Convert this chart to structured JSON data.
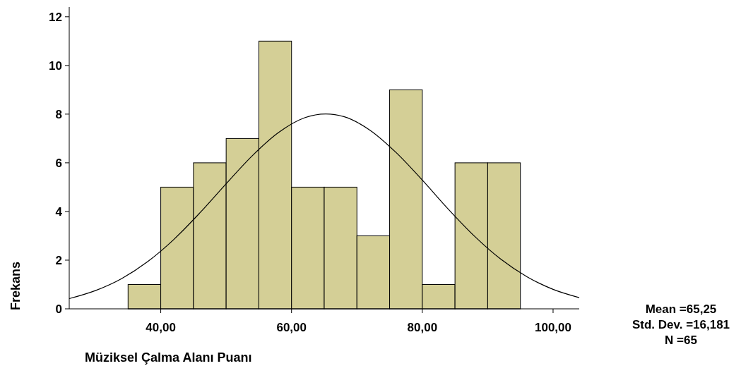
{
  "chart_data": {
    "type": "histogram",
    "xlabel": "Müziksel Çalma Alanı Puanı",
    "ylabel": "Frekans",
    "bins": [
      35,
      40,
      45,
      50,
      55,
      60,
      65,
      70,
      75,
      80,
      85,
      90,
      95
    ],
    "values": [
      1,
      5,
      6,
      7,
      11,
      5,
      5,
      3,
      9,
      1,
      6,
      6
    ],
    "color": "#d4cf96",
    "xlim": [
      26,
      104
    ],
    "xticks": [
      {
        "value": 40,
        "label": "40,00"
      },
      {
        "value": 60,
        "label": "60,00"
      },
      {
        "value": 80,
        "label": "80,00"
      },
      {
        "value": 100,
        "label": "100,00"
      }
    ],
    "ylim": [
      0,
      12.4
    ],
    "yticks": [
      0,
      2,
      4,
      6,
      8,
      10,
      12
    ],
    "series": [
      {
        "type": "line",
        "color": "#000000",
        "x": [
          26,
          30,
          34,
          38,
          42,
          46,
          50,
          54,
          58,
          62,
          65.25,
          68,
          72,
          76,
          80,
          84,
          88,
          92,
          96,
          100,
          104
        ],
        "values": [
          0.42,
          0.75,
          1.24,
          1.94,
          2.85,
          3.95,
          5.14,
          6.29,
          7.24,
          7.85,
          8.01,
          7.9,
          7.34,
          6.42,
          5.29,
          4.09,
          2.98,
          2.04,
          1.32,
          0.8,
          0.46
        ]
      }
    ],
    "annotations": [
      "Mean =65,25",
      "Std. Dev. =16,181",
      "N =65"
    ]
  }
}
